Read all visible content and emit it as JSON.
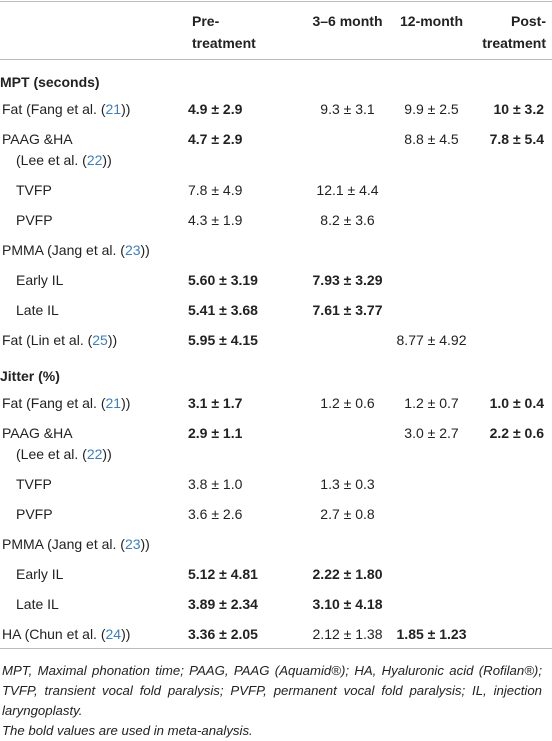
{
  "table": {
    "header": [
      [
        "Pre-",
        "treatment"
      ],
      [
        "3–6 month"
      ],
      [
        "12-month"
      ],
      [
        "Post-",
        "treatment"
      ]
    ],
    "sections": [
      {
        "heading": "MPT (seconds)",
        "rows": [
          {
            "label": [
              [
                {
                  "text": "Fat (Fang et al. ("
                },
                {
                  "ref": "21"
                },
                {
                  "text": "))"
                }
              ]
            ],
            "cells": [
              "4.9 ± 2.9",
              "9.3 ± 3.1",
              "9.9 ± 2.5",
              "10 ± 3.2"
            ],
            "bold": [
              true,
              false,
              false,
              true
            ]
          },
          {
            "label": [
              [
                {
                  "text": "PAAG &HA"
                }
              ],
              [
                {
                  "text": "(Lee et al. ("
                },
                {
                  "ref": "22"
                },
                {
                  "text": "))"
                }
              ]
            ],
            "cells": [
              "4.7 ± 2.9",
              null,
              "8.8 ± 4.5",
              "7.8 ± 5.4"
            ],
            "bold": [
              true,
              false,
              false,
              true
            ]
          },
          {
            "label": [
              [
                {
                  "text": "TVFP"
                }
              ]
            ],
            "indent": true,
            "cells": [
              "7.8 ± 4.9",
              "12.1 ± 4.4",
              null,
              null
            ],
            "bold": [
              false,
              false,
              false,
              false
            ]
          },
          {
            "label": [
              [
                {
                  "text": "PVFP"
                }
              ]
            ],
            "indent": true,
            "cells": [
              "4.3 ± 1.9",
              "8.2 ± 3.6",
              null,
              null
            ],
            "bold": [
              false,
              false,
              false,
              false
            ]
          },
          {
            "label": [
              [
                {
                  "text": "PMMA (Jang et al. ("
                },
                {
                  "ref": "23"
                },
                {
                  "text": "))"
                }
              ]
            ],
            "cells": [
              null,
              null,
              null,
              null
            ],
            "bold": [
              false,
              false,
              false,
              false
            ]
          },
          {
            "label": [
              [
                {
                  "text": "Early IL"
                }
              ]
            ],
            "indent": true,
            "cells": [
              "5.60 ± 3.19",
              "7.93 ± 3.29",
              null,
              null
            ],
            "bold": [
              true,
              true,
              false,
              false
            ]
          },
          {
            "label": [
              [
                {
                  "text": "Late IL"
                }
              ]
            ],
            "indent": true,
            "cells": [
              "5.41 ± 3.68",
              "7.61 ± 3.77",
              null,
              null
            ],
            "bold": [
              true,
              true,
              false,
              false
            ]
          },
          {
            "label": [
              [
                {
                  "text": "Fat (Lin et al. ("
                },
                {
                  "ref": "25"
                },
                {
                  "text": "))"
                }
              ]
            ],
            "cells": [
              "5.95 ± 4.15",
              null,
              "8.77 ± 4.92",
              null
            ],
            "bold": [
              true,
              false,
              false,
              false
            ]
          }
        ]
      },
      {
        "heading": "Jitter (%)",
        "rows": [
          {
            "label": [
              [
                {
                  "text": "Fat (Fang et al. ("
                },
                {
                  "ref": "21"
                },
                {
                  "text": "))"
                }
              ]
            ],
            "cells": [
              "3.1 ± 1.7",
              "1.2 ± 0.6",
              "1.2 ± 0.7",
              "1.0 ± 0.4"
            ],
            "bold": [
              true,
              false,
              false,
              true
            ]
          },
          {
            "label": [
              [
                {
                  "text": "PAAG &HA"
                }
              ],
              [
                {
                  "text": "(Lee et al. ("
                },
                {
                  "ref": "22"
                },
                {
                  "text": "))"
                }
              ]
            ],
            "cells": [
              "2.9 ± 1.1",
              null,
              "3.0 ± 2.7",
              "2.2 ± 0.6"
            ],
            "bold": [
              true,
              false,
              false,
              true
            ]
          },
          {
            "label": [
              [
                {
                  "text": "TVFP"
                }
              ]
            ],
            "indent": true,
            "cells": [
              "3.8 ± 1.0",
              "1.3 ± 0.3",
              null,
              null
            ],
            "bold": [
              false,
              false,
              false,
              false
            ]
          },
          {
            "label": [
              [
                {
                  "text": "PVFP"
                }
              ]
            ],
            "indent": true,
            "cells": [
              "3.6 ± 2.6",
              "2.7 ± 0.8",
              null,
              null
            ],
            "bold": [
              false,
              false,
              false,
              false
            ]
          },
          {
            "label": [
              [
                {
                  "text": "PMMA (Jang et al. ("
                },
                {
                  "ref": "23"
                },
                {
                  "text": "))"
                }
              ]
            ],
            "cells": [
              null,
              null,
              null,
              null
            ],
            "bold": [
              false,
              false,
              false,
              false
            ]
          },
          {
            "label": [
              [
                {
                  "text": "Early IL"
                }
              ]
            ],
            "indent": true,
            "cells": [
              "5.12 ± 4.81",
              "2.22 ± 1.80",
              null,
              null
            ],
            "bold": [
              true,
              true,
              false,
              false
            ]
          },
          {
            "label": [
              [
                {
                  "text": "Late IL"
                }
              ]
            ],
            "indent": true,
            "cells": [
              "3.89 ± 2.34",
              "3.10 ± 4.18",
              null,
              null
            ],
            "bold": [
              true,
              true,
              false,
              false
            ]
          },
          {
            "label": [
              [
                {
                  "text": "HA (Chun et al. ("
                },
                {
                  "ref": "24"
                },
                {
                  "text": "))"
                }
              ]
            ],
            "cells": [
              "3.36 ± 2.05",
              "2.12 ± 1.38",
              "1.85 ± 1.23",
              null
            ],
            "bold": [
              true,
              false,
              true,
              false
            ]
          }
        ]
      }
    ],
    "footnotes": [
      "MPT, Maximal phonation time; PAAG, PAAG (Aquamid®); HA, Hyaluronic acid (Rofilan®); TVFP, transient vocal fold paralysis; PVFP, permanent vocal fold paralysis; IL, injection laryngoplasty.",
      "The bold values are used in meta-analysis."
    ]
  }
}
